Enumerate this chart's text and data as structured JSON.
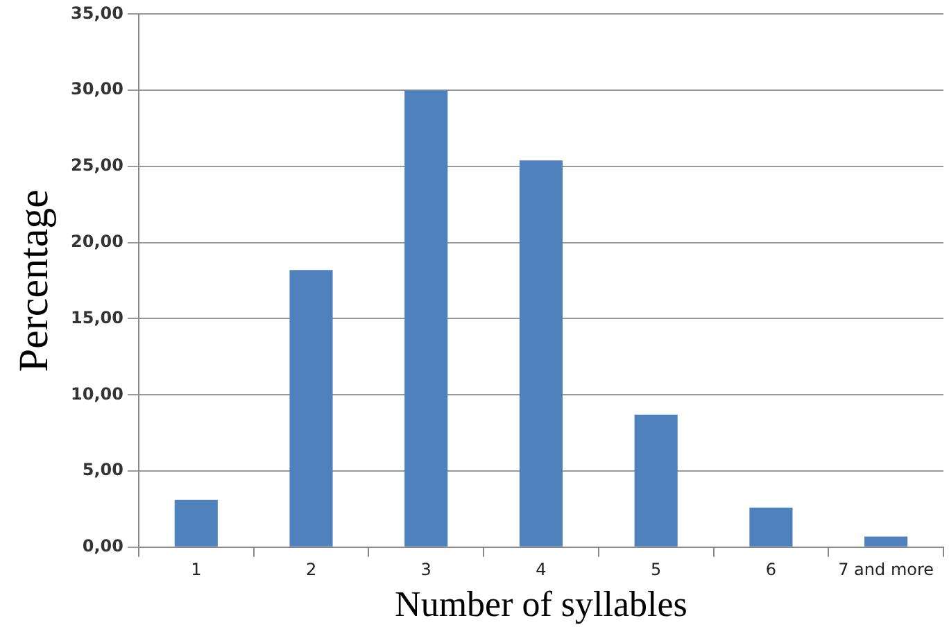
{
  "chart_data": {
    "type": "bar",
    "xlabel": "Number of syllables",
    "ylabel": "Percentage",
    "categories": [
      "1",
      "2",
      "3",
      "4",
      "5",
      "6",
      "7 and more"
    ],
    "values": [
      3.1,
      18.2,
      30.0,
      25.4,
      8.7,
      2.6,
      0.7
    ],
    "color": "#4f81bd",
    "ylim": [
      0,
      35
    ],
    "yticks": [
      {
        "value": 0,
        "label": "0,00"
      },
      {
        "value": 5,
        "label": "5,00"
      },
      {
        "value": 10,
        "label": "10,00"
      },
      {
        "value": 15,
        "label": "15,00"
      },
      {
        "value": 20,
        "label": "20,00"
      },
      {
        "value": 25,
        "label": "25,00"
      },
      {
        "value": 30,
        "label": "30,00"
      },
      {
        "value": 35,
        "label": "35,00"
      }
    ],
    "grid": "y",
    "legend": false
  }
}
